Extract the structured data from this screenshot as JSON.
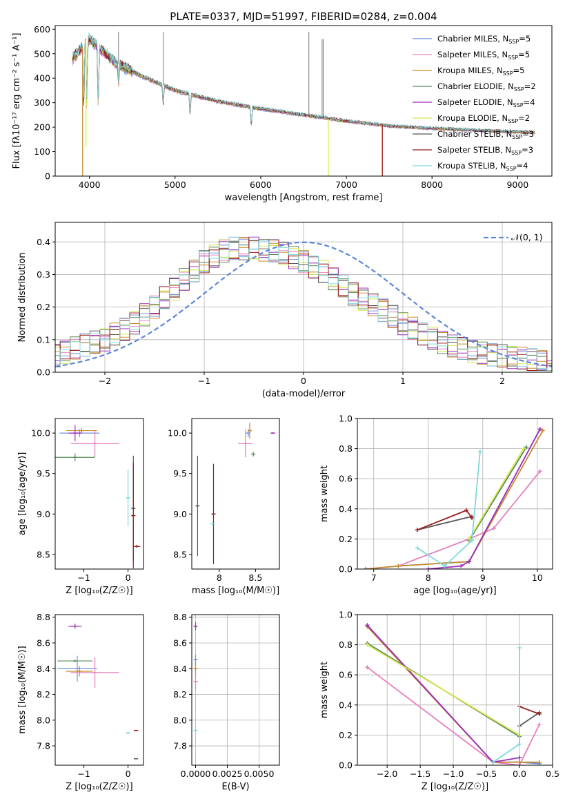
{
  "figure_title": "PLATE=0337, MJD=51997, FIBERID=0284, z=0.004",
  "models": [
    {
      "name": "Chabrier MILES",
      "nssp": "5",
      "color": "#6f8fdc"
    },
    {
      "name": "Salpeter MILES",
      "nssp": "5",
      "color": "#e67fbc"
    },
    {
      "name": "Kroupa MILES",
      "nssp": "5",
      "color": "#c88a2a"
    },
    {
      "name": "Chabrier ELODIE",
      "nssp": "2",
      "color": "#5a8a5a"
    },
    {
      "name": "Salpeter ELODIE",
      "nssp": "4",
      "color": "#9c2db8"
    },
    {
      "name": "Kroupa ELODIE",
      "nssp": "2",
      "color": "#d8e84a"
    },
    {
      "name": "Chabrier STELIB",
      "nssp": "3",
      "color": "#555555"
    },
    {
      "name": "Salpeter STELIB",
      "nssp": "3",
      "color": "#9b1b1b"
    },
    {
      "name": "Kroupa STELIB",
      "nssp": "4",
      "color": "#7fd8dc"
    }
  ],
  "chart_data": [
    {
      "id": "spectrum",
      "type": "line",
      "xlabel": "wavelength [Angstrom, rest frame]",
      "ylabel": "Flux [fλ10⁻¹⁷ erg cm⁻² s⁻¹ A⁻¹]",
      "xlim": [
        3600,
        9400
      ],
      "ylim": [
        0,
        615
      ],
      "xticks": [
        4000,
        5000,
        6000,
        7000,
        8000,
        9000
      ],
      "yticks": [
        0,
        100,
        200,
        300,
        400,
        500,
        600
      ],
      "continuum": {
        "x": [
          3800,
          4000,
          4300,
          4600,
          5000,
          5500,
          6000,
          6500,
          7000,
          7500,
          8000,
          8500,
          9200
        ],
        "y": [
          480,
          560,
          465,
          410,
          350,
          305,
          275,
          250,
          225,
          205,
          195,
          188,
          178
        ]
      },
      "absorption_lines": [
        3934,
        3969,
        4102,
        4340,
        4861,
        5175,
        5890
      ],
      "emission_spikes": [
        {
          "x": 4340,
          "y": 590
        },
        {
          "x": 4861,
          "y": 590
        },
        {
          "x": 6563,
          "y": 590
        },
        {
          "x": 6717,
          "y": 560
        },
        {
          "x": 6731,
          "y": 560
        }
      ],
      "dropouts": [
        {
          "x": 3920,
          "y": 0,
          "model": "Kroupa MILES"
        },
        {
          "x": 3960,
          "y": 120,
          "model": "Kroupa ELODIE"
        },
        {
          "x": 6790,
          "y": 0,
          "model": "Kroupa ELODIE"
        },
        {
          "x": 7420,
          "y": 0,
          "model": "Kroupa MILES"
        },
        {
          "x": 7420,
          "y": 0,
          "model": "Salpeter STELIB"
        }
      ]
    },
    {
      "id": "residuals",
      "type": "area",
      "xlabel": "(data-model)/error",
      "ylabel": "Normed distribution",
      "xlim": [
        -2.5,
        2.5
      ],
      "ylim": [
        0,
        0.46
      ],
      "xticks": [
        -2,
        -1,
        0,
        1,
        2
      ],
      "yticks": [
        0.0,
        0.1,
        0.2,
        0.3,
        0.4
      ],
      "grid": true,
      "legend_label": "𝒩(0, 1)",
      "legend_position": "top-right",
      "histogram": {
        "bin_centers": [
          -2.5,
          -2.25,
          -2.0,
          -1.75,
          -1.5,
          -1.25,
          -1.0,
          -0.75,
          -0.5,
          -0.25,
          0.0,
          0.25,
          0.5,
          0.75,
          1.0,
          1.25,
          1.5,
          1.75,
          2.0,
          2.25,
          2.5
        ],
        "values": [
          0.05,
          0.08,
          0.1,
          0.14,
          0.2,
          0.27,
          0.34,
          0.38,
          0.38,
          0.37,
          0.34,
          0.3,
          0.24,
          0.2,
          0.15,
          0.11,
          0.08,
          0.06,
          0.05,
          0.04,
          0.03
        ]
      },
      "gaussian": {
        "mean": 0,
        "sigma": 1
      }
    },
    {
      "id": "age-vs-z",
      "type": "scatter",
      "xlabel": "Z [log₁₀(Z/Z☉)]",
      "ylabel": "age  [log₁₀(age/yr)]",
      "xlim": [
        -1.65,
        0.35
      ],
      "ylim": [
        8.32,
        10.18
      ],
      "xticks": [
        -1,
        0
      ],
      "yticks": [
        8.5,
        9.0,
        9.5,
        10.0
      ],
      "points": [
        {
          "model": "Chabrier MILES",
          "x": -1.1,
          "y": 10.0,
          "xerr": 0.45,
          "yerr": 0.05
        },
        {
          "model": "Kroupa MILES",
          "x": -1.05,
          "y": 10.03,
          "xerr": 0.35,
          "yerr": 0.03
        },
        {
          "model": "Salpeter MILES",
          "x": -0.75,
          "y": 9.87,
          "xerr": 0.55,
          "yerr": 0.17
        },
        {
          "model": "Chabrier ELODIE",
          "x": -1.2,
          "y": 9.7,
          "xerr": 0.45,
          "yerr": 0.05
        },
        {
          "model": "Salpeter ELODIE",
          "x": -1.2,
          "y": 10.0,
          "xerr": 0.15,
          "yerr": 0.1
        },
        {
          "model": "Kroupa STELIB",
          "x": 0.0,
          "y": 9.2,
          "xerr": 0.02,
          "yerr": 0.35
        },
        {
          "model": "Chabrier STELIB",
          "x": 0.12,
          "y": 9.07,
          "xerr": 0.02,
          "yerr": 0.65
        },
        {
          "model": "Salpeter STELIB",
          "x": 0.12,
          "y": 8.98,
          "xerr": 0.02,
          "yerr": 0.65
        },
        {
          "model": "Salpeter STELIB",
          "x": 0.2,
          "y": 8.6,
          "xerr": 0.08,
          "yerr": 0.02
        }
      ]
    },
    {
      "id": "age-vs-mass",
      "type": "scatter",
      "xlabel": "mass [log₁₀(M/M☉)]",
      "ylabel": "",
      "xlim": [
        7.62,
        8.83
      ],
      "ylim": [
        8.32,
        10.18
      ],
      "xticks": [
        8.0,
        8.5
      ],
      "yticks": [
        8.5,
        9.0,
        9.5,
        10.0
      ],
      "points": [
        {
          "model": "Salpeter MILES",
          "x": 8.36,
          "y": 9.87,
          "xerr": 0.1,
          "yerr": 0.17
        },
        {
          "model": "Chabrier MILES",
          "x": 8.4,
          "y": 10.0,
          "xerr": 0.02,
          "yerr": 0.05
        },
        {
          "model": "Kroupa MILES",
          "x": 8.42,
          "y": 10.03,
          "xerr": 0.02,
          "yerr": 0.1
        },
        {
          "model": "Chabrier ELODIE",
          "x": 8.47,
          "y": 9.74,
          "xerr": 0.01,
          "yerr": 0.03
        },
        {
          "model": "Salpeter ELODIE",
          "x": 8.74,
          "y": 10.0,
          "xerr": 0.03,
          "yerr": 0.01
        },
        {
          "model": "Chabrier STELIB",
          "x": 7.7,
          "y": 9.1,
          "xerr": 0.01,
          "yerr": 0.62
        },
        {
          "model": "Salpeter STELIB",
          "x": 7.92,
          "y": 9.0,
          "xerr": 0.01,
          "yerr": 0.62
        },
        {
          "model": "Kroupa STELIB",
          "x": 7.91,
          "y": 8.88,
          "xerr": 0.01,
          "yerr": 0.02
        }
      ]
    },
    {
      "id": "weight-vs-age",
      "type": "line",
      "xlabel": "age  [log₁₀(age/yr)]",
      "ylabel": "mass weight",
      "xlim": [
        6.7,
        10.28
      ],
      "ylim": [
        0,
        1.0
      ],
      "xticks": [
        7,
        8,
        9,
        10
      ],
      "yticks": [
        0.0,
        0.2,
        0.4,
        0.6,
        0.8,
        1.0
      ],
      "grid": true,
      "series": [
        {
          "model": "Chabrier MILES",
          "x": [
            6.85,
            7.45,
            8.75,
            10.05
          ],
          "y": [
            0.0,
            0.02,
            0.05,
            0.93
          ]
        },
        {
          "model": "Salpeter MILES",
          "x": [
            6.85,
            7.45,
            8.75,
            9.2,
            10.05
          ],
          "y": [
            0.0,
            0.02,
            0.2,
            0.27,
            0.65
          ]
        },
        {
          "model": "Kroupa MILES",
          "x": [
            6.85,
            7.45,
            8.75,
            10.1
          ],
          "y": [
            0.0,
            0.02,
            0.05,
            0.92
          ]
        },
        {
          "model": "Chabrier ELODIE",
          "x": [
            8.75,
            9.8
          ],
          "y": [
            0.19,
            0.81
          ]
        },
        {
          "model": "Salpeter ELODIE",
          "x": [
            8.0,
            8.6,
            8.75,
            10.05
          ],
          "y": [
            0.0,
            0.02,
            0.05,
            0.93
          ]
        },
        {
          "model": "Kroupa ELODIE",
          "x": [
            8.75,
            9.75
          ],
          "y": [
            0.2,
            0.8
          ]
        },
        {
          "model": "Chabrier STELIB",
          "x": [
            7.8,
            8.8
          ],
          "y": [
            0.26,
            0.35
          ]
        },
        {
          "model": "Salpeter STELIB",
          "x": [
            7.8,
            8.7,
            8.8
          ],
          "y": [
            0.26,
            0.39,
            0.34
          ]
        },
        {
          "model": "Kroupa STELIB",
          "x": [
            7.8,
            8.3,
            8.8,
            8.95
          ],
          "y": [
            0.14,
            0.02,
            0.19,
            0.78
          ]
        }
      ]
    },
    {
      "id": "mass-vs-z",
      "type": "scatter",
      "xlabel": "Z [log₁₀(Z/Z☉)]",
      "ylabel": "mass [log₁₀(M/M☉)]",
      "xlim": [
        -1.65,
        0.35
      ],
      "ylim": [
        7.65,
        8.82
      ],
      "xticks": [
        -1,
        0
      ],
      "yticks": [
        7.8,
        8.0,
        8.2,
        8.4,
        8.6,
        8.8
      ],
      "points": [
        {
          "model": "Salpeter ELODIE",
          "x": -1.2,
          "y": 8.73,
          "xerr": 0.15,
          "yerr": 0.02
        },
        {
          "model": "Chabrier MILES",
          "x": -1.15,
          "y": 8.4,
          "xerr": 0.45,
          "yerr": 0.1
        },
        {
          "model": "Chabrier ELODIE",
          "x": -1.2,
          "y": 8.46,
          "xerr": 0.4,
          "yerr": 0.01
        },
        {
          "model": "Kroupa MILES",
          "x": -1.1,
          "y": 8.38,
          "xerr": 0.3,
          "yerr": 0.04
        },
        {
          "model": "Salpeter MILES",
          "x": -0.75,
          "y": 8.37,
          "xerr": 0.55,
          "yerr": 0.12
        },
        {
          "model": "Kroupa STELIB",
          "x": 0.0,
          "y": 7.9,
          "xerr": 0.03,
          "yerr": 0.01
        },
        {
          "model": "Salpeter STELIB",
          "x": 0.18,
          "y": 7.92,
          "xerr": 0.05,
          "yerr": 0.0
        },
        {
          "model": "Chabrier STELIB",
          "x": 0.18,
          "y": 7.7,
          "xerr": 0.05,
          "yerr": 0.0
        }
      ]
    },
    {
      "id": "mass-vs-ebv",
      "type": "scatter",
      "xlabel": "E(B-V)",
      "ylabel": "",
      "xlim": [
        -0.0003,
        0.0066
      ],
      "ylim": [
        7.65,
        8.82
      ],
      "xticks": [
        0.0,
        0.0025,
        0.005
      ],
      "xticklabels": [
        "0.0000",
        "0.0025",
        "0.0050"
      ],
      "yticks": [
        7.8,
        8.0,
        8.2,
        8.4,
        8.6,
        8.8
      ],
      "grid": true,
      "points": [
        {
          "model": "Salpeter ELODIE",
          "x": 0.0,
          "y": 8.73,
          "xerr": 0.0,
          "yerr": 0.03
        },
        {
          "model": "Kroupa MILES",
          "x": 0.0,
          "y": 8.4,
          "xerr": 0.0,
          "yerr": 0.05
        },
        {
          "model": "Chabrier MILES",
          "x": 0.0,
          "y": 8.47,
          "xerr": 0.0,
          "yerr": 0.04
        },
        {
          "model": "Salpeter MILES",
          "x": 0.0,
          "y": 8.3,
          "xerr": 0.0,
          "yerr": 0.06
        },
        {
          "model": "Kroupa STELIB",
          "x": 0.0,
          "y": 7.92,
          "xerr": 0.0,
          "yerr": 0.03
        }
      ]
    },
    {
      "id": "weight-vs-z",
      "type": "line",
      "xlabel": "Z [log₁₀(Z/Z☉)]",
      "ylabel": "mass weight",
      "xlim": [
        -2.45,
        0.5
      ],
      "ylim": [
        0,
        1.0
      ],
      "xticks": [
        -2.0,
        -1.5,
        -1.0,
        -0.5,
        0.0,
        0.5
      ],
      "xticklabels": [
        "−2.0",
        "−1.5",
        "−1.0",
        "−0.5",
        "0.0",
        "0.5"
      ],
      "yticks": [
        0.0,
        0.2,
        0.4,
        0.6,
        0.8,
        1.0
      ],
      "grid": true,
      "series": [
        {
          "model": "Chabrier MILES",
          "x": [
            -2.3,
            -0.4,
            0.0,
            0.3
          ],
          "y": [
            0.93,
            0.02,
            0.02,
            0.01
          ]
        },
        {
          "model": "Salpeter MILES",
          "x": [
            -2.3,
            -0.4,
            0.0,
            0.3
          ],
          "y": [
            0.65,
            0.02,
            0.0,
            0.27
          ]
        },
        {
          "model": "Kroupa MILES",
          "x": [
            -2.3,
            -0.4,
            0.0,
            0.3
          ],
          "y": [
            0.92,
            0.02,
            0.02,
            0.02
          ]
        },
        {
          "model": "Chabrier ELODIE",
          "x": [
            -2.3,
            0.0
          ],
          "y": [
            0.81,
            0.19
          ]
        },
        {
          "model": "Salpeter ELODIE",
          "x": [
            -2.3,
            -0.4,
            0.0
          ],
          "y": [
            0.93,
            0.02,
            0.05
          ]
        },
        {
          "model": "Kroupa ELODIE",
          "x": [
            -2.3,
            0.0
          ],
          "y": [
            0.8,
            0.2
          ]
        },
        {
          "model": "Chabrier STELIB",
          "x": [
            0.0,
            0.3
          ],
          "y": [
            0.26,
            0.35
          ]
        },
        {
          "model": "Salpeter STELIB",
          "x": [
            0.0,
            0.3
          ],
          "y": [
            0.39,
            0.34
          ]
        },
        {
          "model": "Kroupa STELIB",
          "x": [
            -0.4,
            0.0,
            0.0
          ],
          "y": [
            0.02,
            0.14,
            0.78
          ]
        }
      ]
    }
  ]
}
